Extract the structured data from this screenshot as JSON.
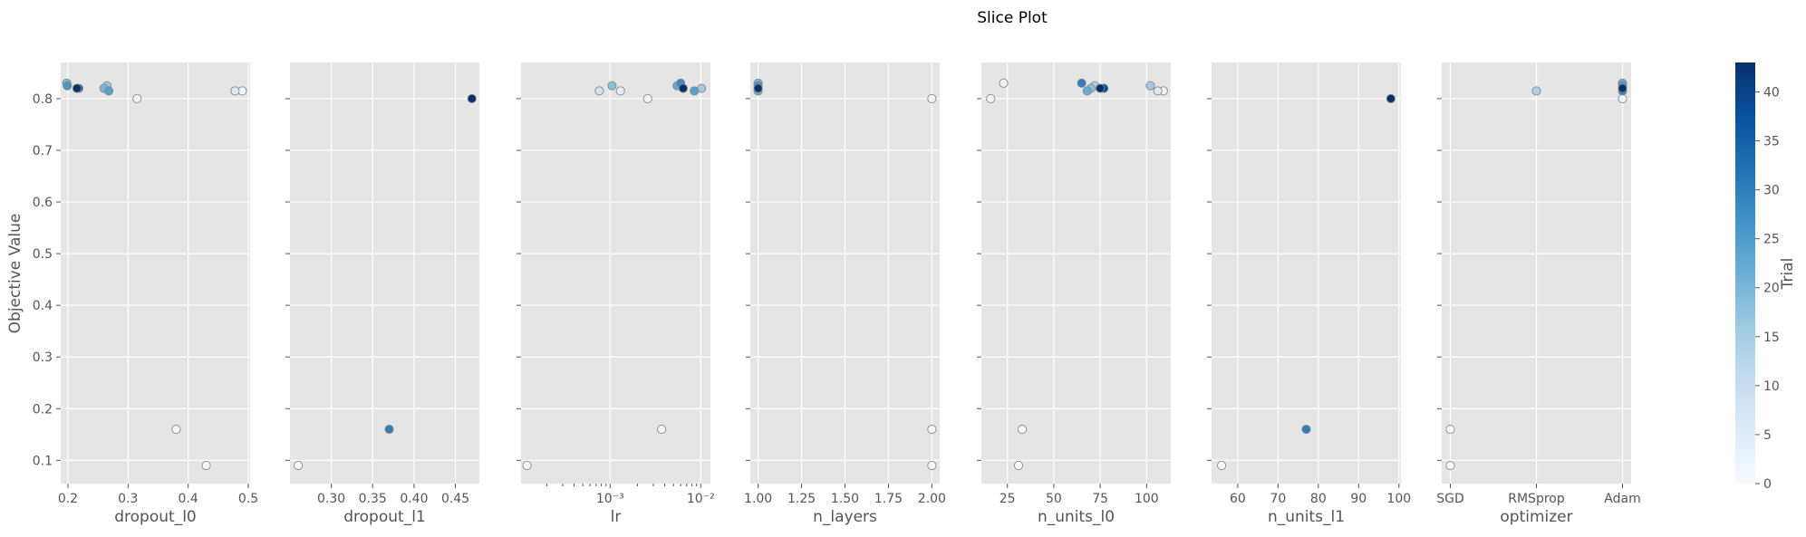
{
  "chart_data": {
    "type": "scatter",
    "title": "Slice Plot",
    "ylabel": "Objective Value",
    "ylim": [
      0.055,
      0.87
    ],
    "yticks": [
      0.1,
      0.2,
      0.3,
      0.4,
      0.5,
      0.6,
      0.7,
      0.8
    ],
    "ytick_labels": [
      "0.1",
      "0.2",
      "0.3",
      "0.4",
      "0.5",
      "0.6",
      "0.7",
      "0.8"
    ],
    "grid": true,
    "colorbar": {
      "label": "Trial",
      "min": 0,
      "max": 43,
      "ticks": [
        0,
        5,
        10,
        15,
        20,
        25,
        30,
        35,
        40
      ],
      "tick_labels": [
        "0",
        "5",
        "10",
        "15",
        "20",
        "25",
        "30",
        "35",
        "40"
      ],
      "colormap": "Blues"
    },
    "panels": [
      {
        "xlabel": "dropout_l0",
        "scale": "linear",
        "xlim": [
          0.188,
          0.503
        ],
        "xticks": [
          0.2,
          0.3,
          0.4,
          0.5
        ],
        "xtick_labels": [
          "0.2",
          "0.3",
          "0.4",
          "0.5"
        ],
        "points": [
          {
            "x": 0.198,
            "y": 0.83,
            "trial": 20
          },
          {
            "x": 0.199,
            "y": 0.825,
            "trial": 26
          },
          {
            "x": 0.215,
            "y": 0.82,
            "trial": 43
          },
          {
            "x": 0.218,
            "y": 0.82,
            "trial": 38
          },
          {
            "x": 0.26,
            "y": 0.82,
            "trial": 20
          },
          {
            "x": 0.265,
            "y": 0.825,
            "trial": 16
          },
          {
            "x": 0.268,
            "y": 0.815,
            "trial": 24
          },
          {
            "x": 0.315,
            "y": 0.8,
            "trial": 2
          },
          {
            "x": 0.38,
            "y": 0.16,
            "trial": 0
          },
          {
            "x": 0.43,
            "y": 0.09,
            "trial": 0
          },
          {
            "x": 0.478,
            "y": 0.815,
            "trial": 6
          },
          {
            "x": 0.49,
            "y": 0.815,
            "trial": 1
          }
        ]
      },
      {
        "xlabel": "dropout_l1",
        "scale": "linear",
        "xlim": [
          0.25,
          0.479
        ],
        "xticks": [
          0.3,
          0.35,
          0.4,
          0.45
        ],
        "xtick_labels": [
          "0.30",
          "0.35",
          "0.40",
          "0.45"
        ],
        "points": [
          {
            "x": 0.26,
            "y": 0.09,
            "trial": 0
          },
          {
            "x": 0.37,
            "y": 0.16,
            "trial": 30
          },
          {
            "x": 0.47,
            "y": 0.8,
            "trial": 43
          }
        ]
      },
      {
        "xlabel": "lr",
        "scale": "log",
        "xlim": [
          0.000104,
          0.0128
        ],
        "xticks": [
          0.001,
          0.01
        ],
        "xtick_labels": [
          "10⁻³",
          "10⁻²"
        ],
        "points": [
          {
            "x": 0.000121,
            "y": 0.09,
            "trial": 0
          },
          {
            "x": 0.00076,
            "y": 0.815,
            "trial": 8
          },
          {
            "x": 0.00105,
            "y": 0.825,
            "trial": 18
          },
          {
            "x": 0.0013,
            "y": 0.815,
            "trial": 4
          },
          {
            "x": 0.0026,
            "y": 0.8,
            "trial": 2
          },
          {
            "x": 0.0037,
            "y": 0.16,
            "trial": 0
          },
          {
            "x": 0.0055,
            "y": 0.825,
            "trial": 22
          },
          {
            "x": 0.006,
            "y": 0.83,
            "trial": 28
          },
          {
            "x": 0.0064,
            "y": 0.82,
            "trial": 43
          },
          {
            "x": 0.0085,
            "y": 0.815,
            "trial": 24
          },
          {
            "x": 0.0102,
            "y": 0.82,
            "trial": 16
          }
        ]
      },
      {
        "xlabel": "n_layers",
        "scale": "linear",
        "xlim": [
          0.955,
          2.045
        ],
        "xticks": [
          1.0,
          1.25,
          1.5,
          1.75,
          2.0
        ],
        "xtick_labels": [
          "1.00",
          "1.25",
          "1.50",
          "1.75",
          "2.00"
        ],
        "points": [
          {
            "x": 1.0,
            "y": 0.83,
            "trial": 20
          },
          {
            "x": 1.0,
            "y": 0.825,
            "trial": 26
          },
          {
            "x": 1.0,
            "y": 0.82,
            "trial": 43
          },
          {
            "x": 1.0,
            "y": 0.815,
            "trial": 22
          },
          {
            "x": 2.0,
            "y": 0.8,
            "trial": 2
          },
          {
            "x": 2.0,
            "y": 0.16,
            "trial": 0
          },
          {
            "x": 2.0,
            "y": 0.09,
            "trial": 0
          }
        ]
      },
      {
        "xlabel": "n_units_l0",
        "scale": "linear",
        "xlim": [
          11,
          113
        ],
        "xticks": [
          25,
          50,
          75,
          100
        ],
        "xtick_labels": [
          "25",
          "50",
          "75",
          "100"
        ],
        "points": [
          {
            "x": 16,
            "y": 0.8,
            "trial": 2
          },
          {
            "x": 23,
            "y": 0.83,
            "trial": 3
          },
          {
            "x": 31,
            "y": 0.09,
            "trial": 0
          },
          {
            "x": 33,
            "y": 0.16,
            "trial": 0
          },
          {
            "x": 65,
            "y": 0.83,
            "trial": 30
          },
          {
            "x": 68,
            "y": 0.815,
            "trial": 22
          },
          {
            "x": 70,
            "y": 0.82,
            "trial": 18
          },
          {
            "x": 72,
            "y": 0.825,
            "trial": 14
          },
          {
            "x": 75,
            "y": 0.82,
            "trial": 43
          },
          {
            "x": 77,
            "y": 0.82,
            "trial": 38
          },
          {
            "x": 102,
            "y": 0.825,
            "trial": 16
          },
          {
            "x": 106,
            "y": 0.815,
            "trial": 6
          },
          {
            "x": 109,
            "y": 0.815,
            "trial": 1
          }
        ]
      },
      {
        "xlabel": "n_units_l1",
        "scale": "linear",
        "xlim": [
          53.5,
          100.5
        ],
        "xticks": [
          60,
          70,
          80,
          90,
          100
        ],
        "xtick_labels": [
          "60",
          "70",
          "80",
          "90",
          "100"
        ],
        "points": [
          {
            "x": 56,
            "y": 0.09,
            "trial": 0
          },
          {
            "x": 77,
            "y": 0.16,
            "trial": 30
          },
          {
            "x": 98,
            "y": 0.8,
            "trial": 43
          }
        ]
      },
      {
        "xlabel": "optimizer",
        "scale": "category",
        "xlim": [
          -0.1,
          2.1
        ],
        "xticks": [
          0,
          1,
          2
        ],
        "xtick_labels": [
          "SGD",
          "RMSprop",
          "Adam"
        ],
        "points": [
          {
            "x": 0,
            "y": 0.16,
            "trial": 0
          },
          {
            "x": 0,
            "y": 0.09,
            "trial": 0
          },
          {
            "x": 1,
            "y": 0.815,
            "trial": 14
          },
          {
            "x": 2,
            "y": 0.83,
            "trial": 22
          },
          {
            "x": 2,
            "y": 0.825,
            "trial": 26
          },
          {
            "x": 2,
            "y": 0.82,
            "trial": 43
          },
          {
            "x": 2,
            "y": 0.815,
            "trial": 30
          },
          {
            "x": 2,
            "y": 0.8,
            "trial": 2
          }
        ]
      }
    ]
  }
}
